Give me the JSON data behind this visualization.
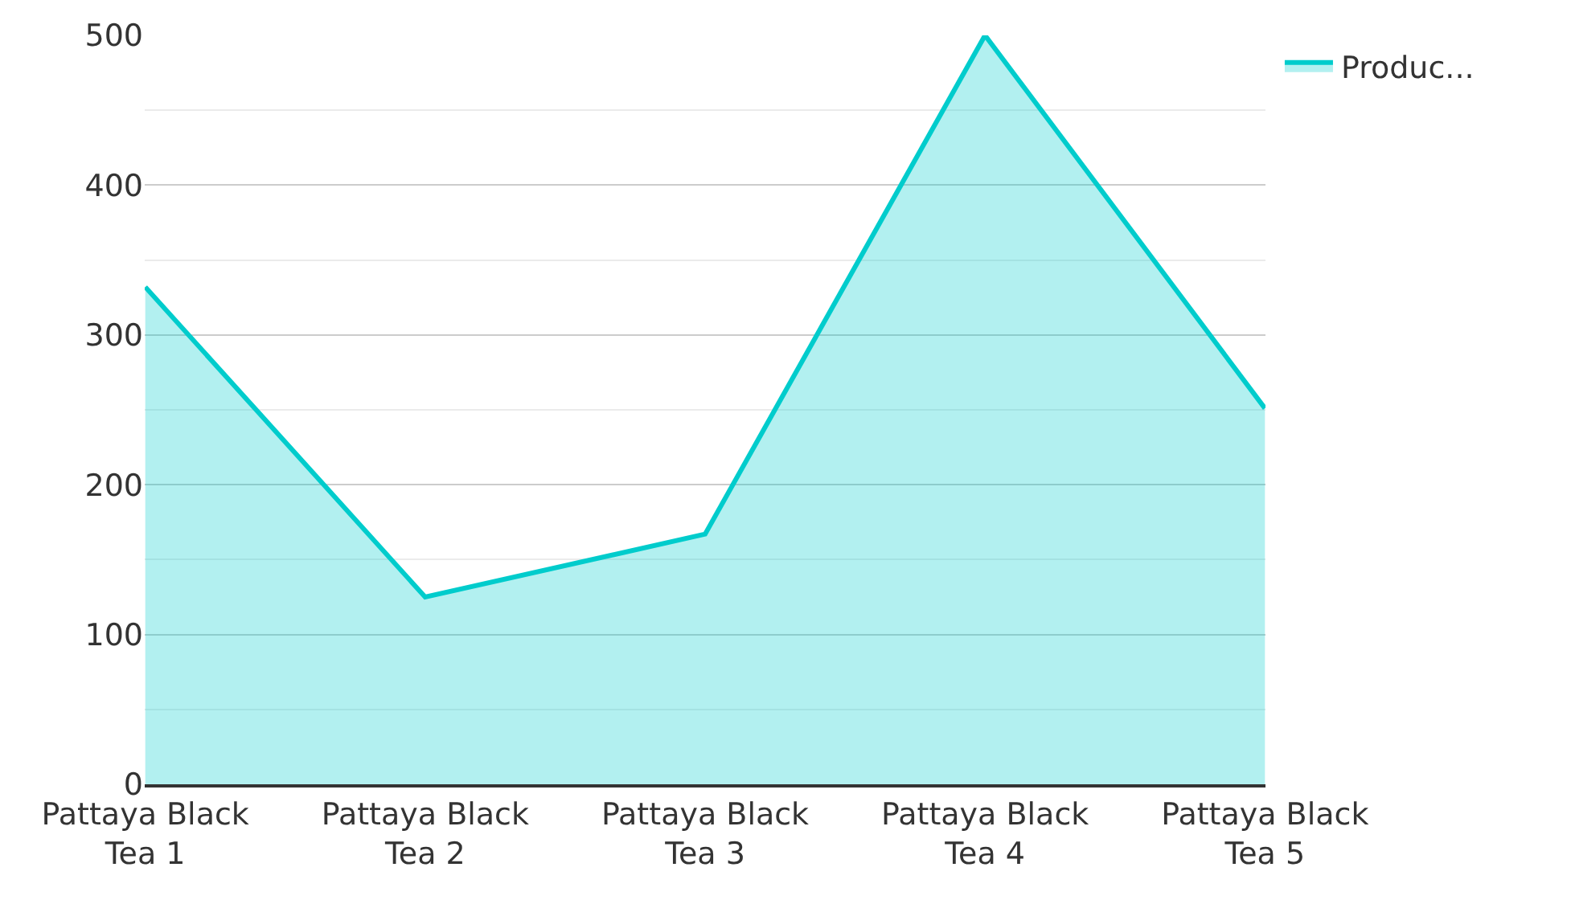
{
  "chart_data": {
    "type": "area",
    "categories": [
      "Pattaya Black Tea 1",
      "Pattaya Black Tea 2",
      "Pattaya Black Tea 3",
      "Pattaya Black Tea 4",
      "Pattaya Black Tea 5"
    ],
    "series": [
      {
        "name": "Produc...",
        "color": "#00cccc",
        "values": [
          332,
          125,
          167,
          500,
          251
        ]
      }
    ],
    "ylim": [
      0,
      500
    ],
    "yticks": [
      0,
      100,
      200,
      300,
      400,
      500
    ],
    "grid": "y",
    "legend": "top right"
  }
}
